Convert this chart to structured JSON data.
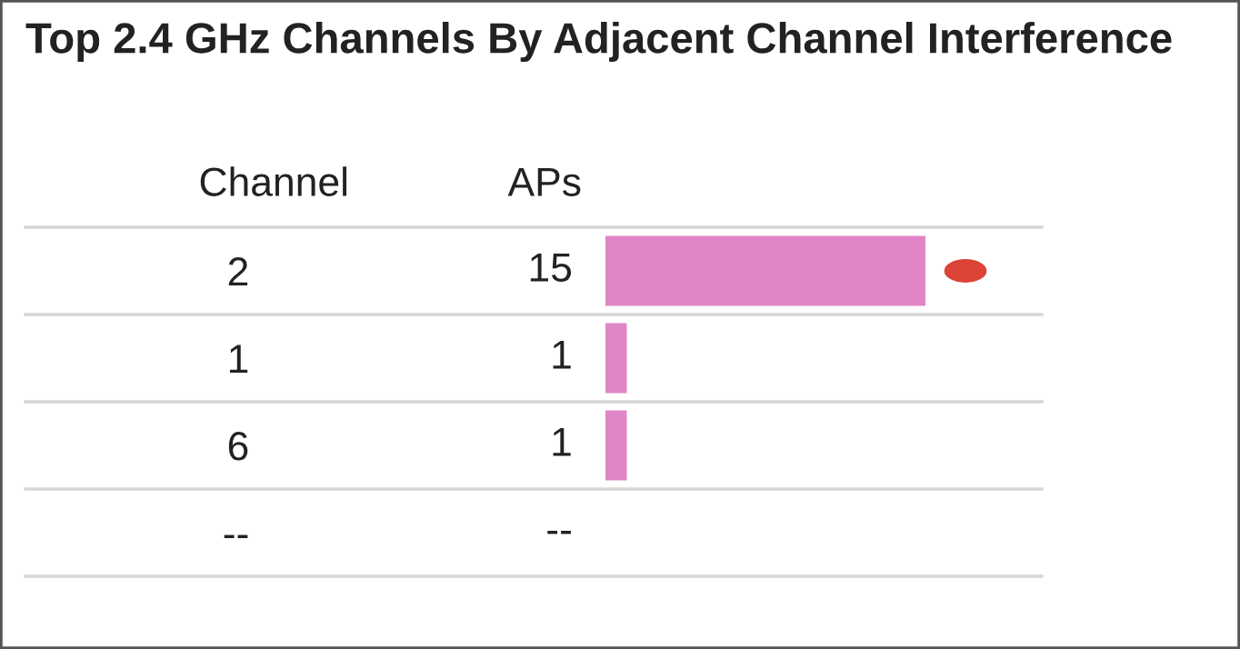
{
  "chart_data": {
    "type": "bar",
    "orientation": "horizontal",
    "title": "Top 2.4 GHz Channels By Adjacent Channel Interference",
    "ylabel": "Channel",
    "xlabel": "APs",
    "categories": [
      "2",
      "1",
      "6",
      "--"
    ],
    "values": [
      15,
      1,
      1,
      null
    ],
    "value_labels": [
      "15",
      "1",
      "1",
      "--"
    ],
    "color": "#e086c8"
  }
}
